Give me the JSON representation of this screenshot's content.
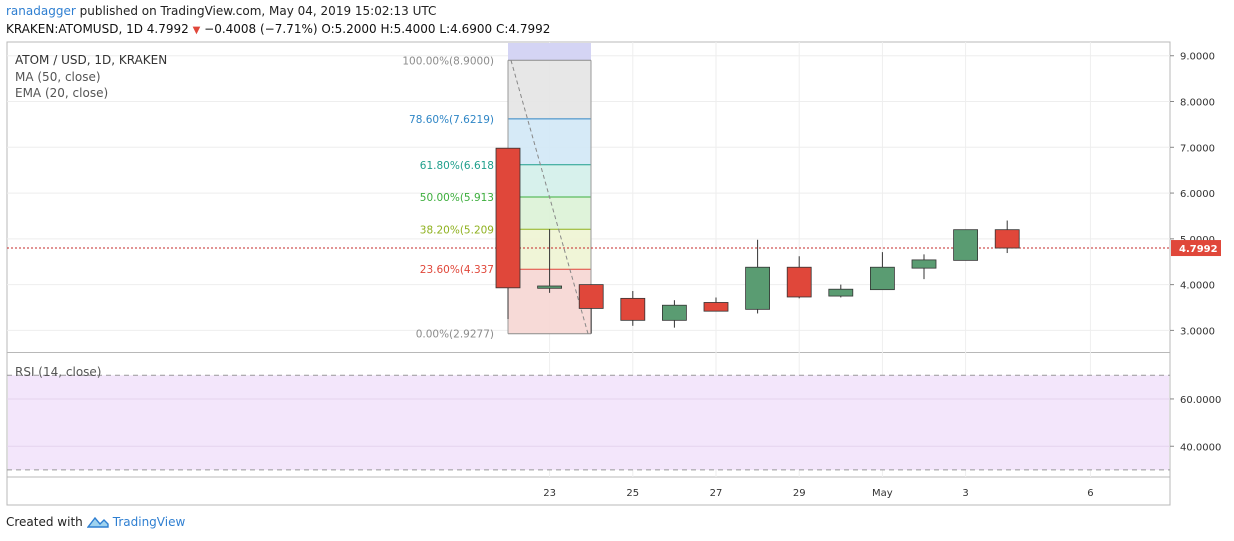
{
  "header": {
    "user": "ranadagger",
    "published": "published on TradingView.com, May 04, 2019 15:02:13 UTC",
    "symbol": "KRAKEN:ATOMUSD, 1D",
    "last": "4.7992",
    "change": "−0.4008 (−7.71%)",
    "o_label": "O:",
    "o": "5.2000",
    "h_label": "H:",
    "h": "5.4000",
    "l_label": "L:",
    "l": "4.6900",
    "c_label": "C:",
    "c": "4.7992"
  },
  "footer": {
    "created_with": "Created with",
    "brand": "TradingView"
  },
  "colors": {
    "up": "#5a9c72",
    "down": "#e0473a",
    "rsi_bg": "#f3e6fb",
    "price_line": "#c62828"
  },
  "chart_data": {
    "type": "candlestick",
    "title": "ATOM / USD, 1D, KRAKEN",
    "indicators": [
      "MA (50, close)",
      "EMA (20, close)"
    ],
    "x_ticks": [
      "23",
      "25",
      "27",
      "29",
      "May",
      "3",
      "6"
    ],
    "x_tick_index": [
      1,
      3,
      5,
      7,
      9,
      11,
      14
    ],
    "y_ticks": [
      "3.0000",
      "4.0000",
      "5.0000",
      "6.0000",
      "7.0000",
      "8.0000",
      "9.0000"
    ],
    "ylim": [
      2.55,
      9.3
    ],
    "last_price_label": "4.7992",
    "last_price": 4.7992,
    "candles": [
      {
        "o": 6.98,
        "h": 6.98,
        "l": 3.25,
        "c": 3.93
      },
      {
        "o": 3.92,
        "h": 5.21,
        "l": 3.82,
        "c": 3.97
      },
      {
        "o": 4.0,
        "h": 4.0,
        "l": 2.93,
        "c": 3.48
      },
      {
        "o": 3.7,
        "h": 3.86,
        "l": 3.1,
        "c": 3.22
      },
      {
        "o": 3.22,
        "h": 3.66,
        "l": 3.06,
        "c": 3.55
      },
      {
        "o": 3.61,
        "h": 3.72,
        "l": 3.42,
        "c": 3.42
      },
      {
        "o": 3.46,
        "h": 4.98,
        "l": 3.37,
        "c": 4.38
      },
      {
        "o": 4.38,
        "h": 4.62,
        "l": 3.7,
        "c": 3.73
      },
      {
        "o": 3.75,
        "h": 4.0,
        "l": 3.72,
        "c": 3.9
      },
      {
        "o": 3.89,
        "h": 4.71,
        "l": 3.89,
        "c": 4.38
      },
      {
        "o": 4.36,
        "h": 4.66,
        "l": 4.12,
        "c": 4.54
      },
      {
        "o": 4.53,
        "h": 5.2,
        "l": 4.53,
        "c": 5.2
      },
      {
        "o": 5.2,
        "h": 5.4,
        "l": 4.69,
        "c": 4.7992
      }
    ],
    "fib": {
      "high": 8.9,
      "low": 2.9277,
      "levels": [
        {
          "label": "100.00%(8.9000)",
          "value": 8.9,
          "color": "#8c8c8c",
          "fill": "#e4e4e4"
        },
        {
          "label": "78.60%(7.6219)",
          "value": 7.6219,
          "color": "#2f86c6",
          "fill": "#d2e8f6"
        },
        {
          "label": "61.80%(6.618",
          "value": 6.618,
          "color": "#1f9f8c",
          "fill": "#d3f0ea"
        },
        {
          "label": "50.00%(5.913",
          "value": 5.913,
          "color": "#3dae3d",
          "fill": "#dbf2d6"
        },
        {
          "label": "38.20%(5.209",
          "value": 5.209,
          "color": "#8fb11f",
          "fill": "#eef4d3"
        },
        {
          "label": "23.60%(4.337",
          "value": 4.337,
          "color": "#e0473a",
          "fill": "#f6d6d3"
        },
        {
          "label": "0.00%(2.9277)",
          "value": 2.9277,
          "color": "#8c8c8c",
          "fill": "#f6d6d3"
        }
      ]
    },
    "rsi": {
      "title": "RSI (14, close)",
      "y_ticks": [
        "40.0000",
        "60.0000"
      ],
      "y_tick_values": [
        40,
        60
      ],
      "ylim": [
        27,
        79
      ],
      "band": [
        30,
        70
      ]
    }
  }
}
